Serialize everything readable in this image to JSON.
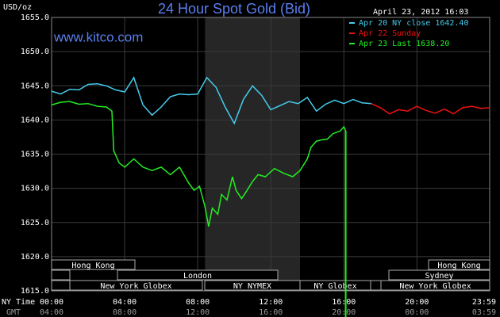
{
  "chart_data": {
    "type": "line",
    "title": "24 Hour Spot Gold (Bid)",
    "date_label": "April 23, 2012 16:03",
    "site": "www.kitco.com",
    "y_label": "USD/oz",
    "x_label": "NY Time",
    "x2_label": "GMT",
    "xlim": [
      0,
      23.983
    ],
    "ylim": [
      1615,
      1655
    ],
    "grid": true,
    "xticks": [
      {
        "value": 0,
        "label": "00:00"
      },
      {
        "value": 4,
        "label": "04:00"
      },
      {
        "value": 8,
        "label": "08:00"
      },
      {
        "value": 12,
        "label": "12:00"
      },
      {
        "value": 16,
        "label": "16:00"
      },
      {
        "value": 20,
        "label": "20:00"
      },
      {
        "value": 23.983,
        "label": "23:59"
      }
    ],
    "x2tick_labels": [
      "04:00",
      "08:00",
      "12:00",
      "16:00",
      "20:00",
      "00:00",
      "03:59"
    ],
    "yticks": [
      {
        "value": 1615,
        "label": "1615.0"
      },
      {
        "value": 1620,
        "label": "1620.0"
      },
      {
        "value": 1625,
        "label": "1625.0"
      },
      {
        "value": 1630,
        "label": "1630.0"
      },
      {
        "value": 1635,
        "label": "1635.0"
      },
      {
        "value": 1640,
        "label": "1640.0"
      },
      {
        "value": 1645,
        "label": "1645.0"
      },
      {
        "value": 1650,
        "label": "1650.0"
      },
      {
        "value": 1655,
        "label": "1655.0"
      }
    ],
    "sessions": [
      "Hong Kong",
      "London",
      "New York Globex",
      "NY NYMEX",
      "NY Globex",
      "Hong Kong",
      "Sydney",
      "New York Globex"
    ],
    "series": [
      {
        "name": "Apr 20 NY close 1642.40",
        "color": "#44ccee",
        "x": [
          0,
          0.5,
          1,
          1.5,
          2,
          2.5,
          3,
          3.5,
          4,
          4.5,
          5,
          5.5,
          6,
          6.5,
          7,
          7.5,
          8,
          8.5,
          9,
          9.5,
          10,
          10.5,
          11,
          11.5,
          12,
          12.5,
          13,
          13.5,
          14,
          14.5,
          15,
          15.5,
          16,
          16.5,
          17,
          17.5
        ],
        "values": [
          1644.2,
          1643.8,
          1644.5,
          1644.4,
          1645.2,
          1645.3,
          1645.0,
          1644.4,
          1644.1,
          1646.2,
          1642.2,
          1640.7,
          1641.9,
          1643.4,
          1643.8,
          1643.7,
          1643.8,
          1646.2,
          1644.8,
          1641.9,
          1639.5,
          1643.0,
          1645.0,
          1643.6,
          1641.5,
          1642.1,
          1642.7,
          1642.4,
          1643.3,
          1641.3,
          1642.3,
          1642.9,
          1642.4,
          1643.0,
          1642.5,
          1642.4
        ]
      },
      {
        "name": "Apr 22 Sunday",
        "color": "#ee1111",
        "x": [
          17.5,
          18,
          18.5,
          19,
          19.5,
          20,
          20.5,
          21,
          21.5,
          22,
          22.5,
          23,
          23.5,
          23.983
        ],
        "values": [
          1642.4,
          1641.8,
          1640.9,
          1641.5,
          1641.3,
          1642.0,
          1641.4,
          1641.0,
          1641.6,
          1640.9,
          1641.8,
          1642.0,
          1641.7,
          1641.8
        ]
      },
      {
        "name": "Apr 23 Last 1638.20",
        "color": "#22ee22",
        "x": [
          0,
          0.5,
          1,
          1.5,
          2,
          2.5,
          3,
          3.3,
          3.4,
          3.7,
          4,
          4.5,
          5,
          5.5,
          6,
          6.5,
          7,
          7.5,
          7.8,
          8.1,
          8.4,
          8.6,
          8.8,
          9.1,
          9.3,
          9.6,
          9.9,
          10.1,
          10.4,
          10.7,
          11,
          11.3,
          11.7,
          12.2,
          12.7,
          13.2,
          13.6,
          14,
          14.2,
          14.5,
          14.8,
          15.1,
          15.4,
          15.8,
          16.0,
          16.1
        ],
        "values": [
          1642.2,
          1642.6,
          1642.7,
          1642.3,
          1642.4,
          1642.0,
          1641.9,
          1641.3,
          1635.5,
          1633.7,
          1633.1,
          1634.3,
          1633.1,
          1632.6,
          1633.1,
          1632.0,
          1633.1,
          1630.8,
          1629.7,
          1630.3,
          1627.3,
          1624.4,
          1627.1,
          1626.2,
          1629.1,
          1628.3,
          1631.7,
          1629.7,
          1628.5,
          1629.7,
          1631.0,
          1632.0,
          1631.7,
          1632.9,
          1632.2,
          1631.7,
          1632.6,
          1634.3,
          1636.0,
          1636.9,
          1637.1,
          1637.2,
          1638.0,
          1638.4,
          1639.0,
          1638.4
        ]
      }
    ]
  }
}
